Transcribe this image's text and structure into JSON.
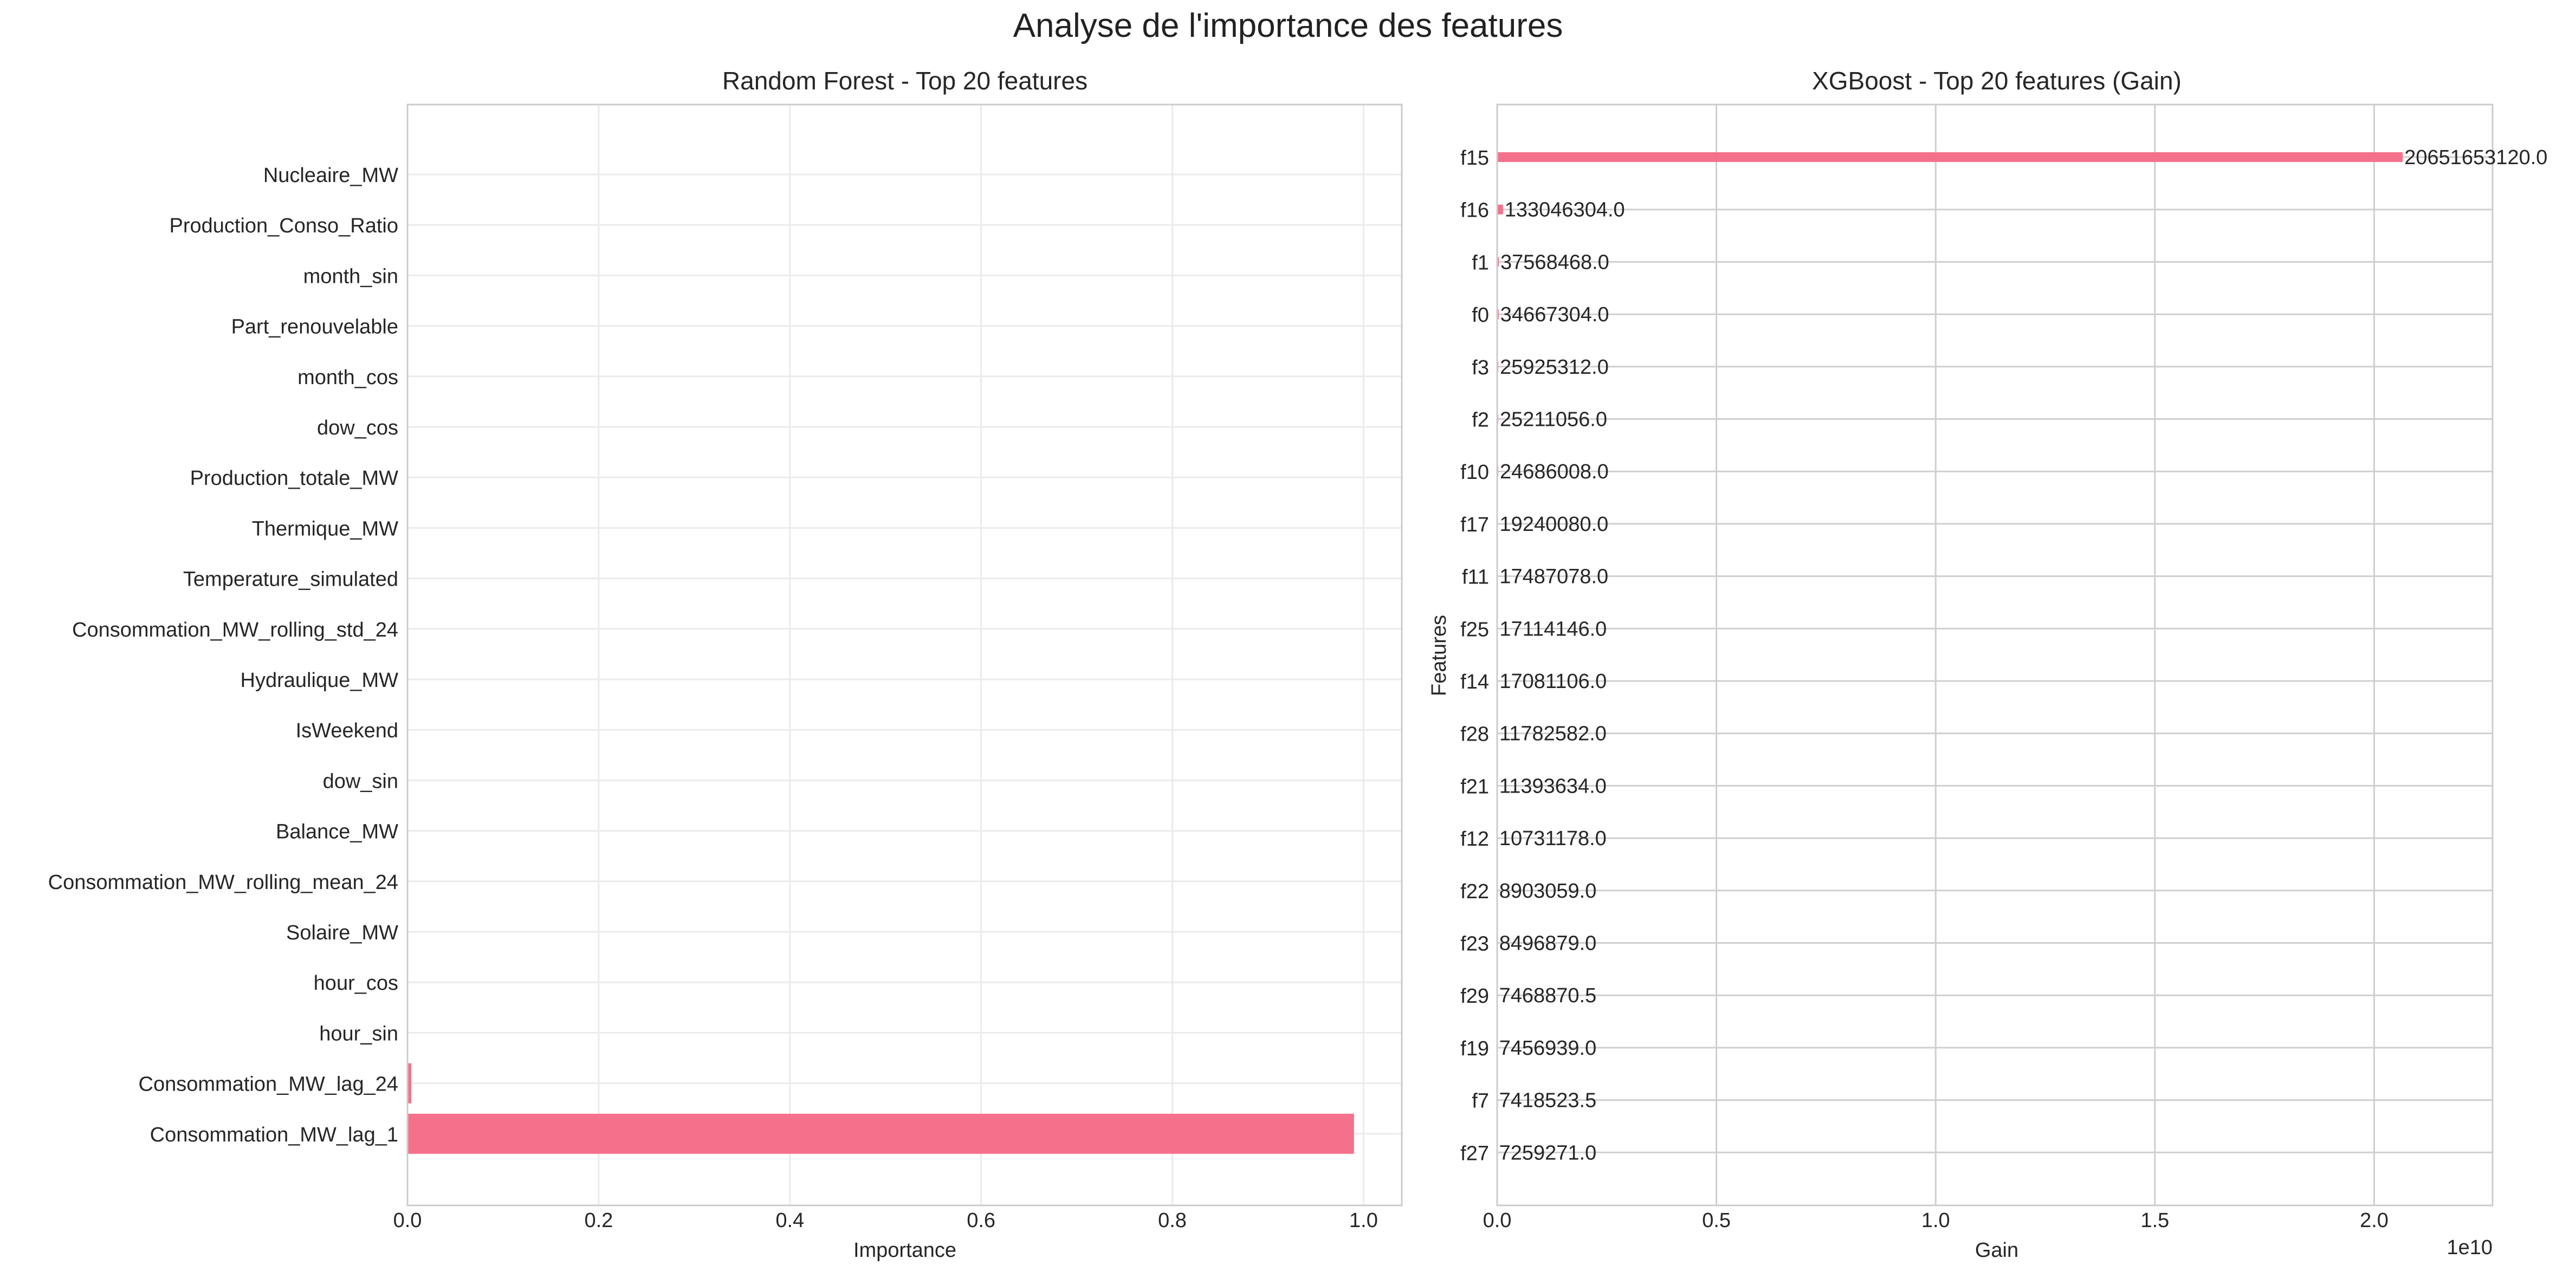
{
  "figure": {
    "title": "Analyse de l'importance des features"
  },
  "chart_data": [
    {
      "type": "bar",
      "orientation": "horizontal",
      "title": "Random Forest - Top 20 features",
      "xlabel": "Importance",
      "ylabel": "",
      "xlim": [
        0,
        1.04
      ],
      "xticks": [
        "0.0",
        "0.2",
        "0.4",
        "0.6",
        "0.8",
        "1.0"
      ],
      "grid": true,
      "bar_color": "#f5718b",
      "categories": [
        "Nucleaire_MW",
        "Production_Conso_Ratio",
        "month_sin",
        "Part_renouvelable",
        "month_cos",
        "dow_cos",
        "Production_totale_MW",
        "Thermique_MW",
        "Temperature_simulated",
        "Consommation_MW_rolling_std_24",
        "Hydraulique_MW",
        "IsWeekend",
        "dow_sin",
        "Balance_MW",
        "Consommation_MW_rolling_mean_24",
        "Solaire_MW",
        "hour_cos",
        "hour_sin",
        "Consommation_MW_lag_24",
        "Consommation_MW_lag_1"
      ],
      "values": [
        0.0,
        0.0,
        0.0,
        0.0,
        0.0,
        0.0,
        0.0,
        0.0,
        0.0,
        0.0,
        0.0,
        0.0,
        0.0,
        0.0,
        0.0001,
        0.0002,
        0.0004,
        0.0006,
        0.004,
        0.99
      ]
    },
    {
      "type": "bar",
      "orientation": "horizontal",
      "title": "XGBoost - Top 20 features (Gain)",
      "xlabel": "Gain",
      "ylabel": "Features",
      "xlim": [
        0,
        22700000000
      ],
      "xticks": [
        "0.0",
        "0.5",
        "1.0",
        "1.5",
        "2.0"
      ],
      "offset_text": "1e10",
      "grid": true,
      "bar_color": "#f5718b",
      "categories": [
        "f15",
        "f16",
        "f1",
        "f0",
        "f3",
        "f2",
        "f10",
        "f17",
        "f11",
        "f25",
        "f14",
        "f28",
        "f21",
        "f12",
        "f22",
        "f23",
        "f29",
        "f19",
        "f7",
        "f27"
      ],
      "values": [
        20651653120.0,
        133046304.0,
        37568468.0,
        34667304.0,
        25925312.0,
        25211056.0,
        24686008.0,
        19240080.0,
        17487078.0,
        17114146.0,
        17081106.0,
        11782582.0,
        11393634.0,
        10731178.0,
        8903059.0,
        8496879.0,
        7468870.5,
        7456939.0,
        7418523.5,
        7259271.0
      ],
      "value_labels": [
        "20651653120.0",
        "133046304.0",
        "37568468.0",
        "34667304.0",
        "25925312.0",
        "25211056.0",
        "24686008.0",
        "19240080.0",
        "17487078.0",
        "17114146.0",
        "17081106.0",
        "11782582.0",
        "11393634.0",
        "10731178.0",
        "8903059.0",
        "8496879.0",
        "7468870.5",
        "7456939.0",
        "7418523.5",
        "7259271.0"
      ]
    }
  ]
}
